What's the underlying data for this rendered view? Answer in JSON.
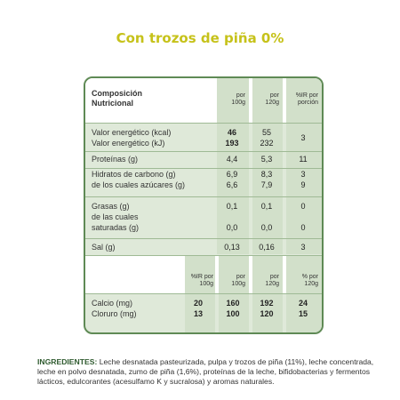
{
  "title": "Con trozos de piña 0%",
  "table": {
    "header": {
      "composicion": "Composición",
      "nutricional": "Nutricional",
      "por100a": "por",
      "por100b": "100g",
      "por120a": "por",
      "por120b": "120g",
      "irA": "%IR por",
      "irB": "porción"
    },
    "rows": [
      {
        "label": "Valor energético (kcal)",
        "v100": "46",
        "v120": "55",
        "ir": "3"
      },
      {
        "label": "Valor energético (kJ)",
        "v100": "193",
        "v120": "232",
        "ir": ""
      },
      {
        "label": "Proteínas (g)",
        "v100": "4,4",
        "v120": "5,3",
        "ir": "11"
      },
      {
        "label": "Hidratos de carbono (g)",
        "v100": "6,9",
        "v120": "8,3",
        "ir": "3"
      },
      {
        "label": "de los cuales azúcares (g)",
        "v100": "6,6",
        "v120": "7,9",
        "ir": "9"
      },
      {
        "label": "Grasas (g)",
        "v100": "0,1",
        "v120": "0,1",
        "ir": "0"
      },
      {
        "label": "de las cuales",
        "v100": "",
        "v120": "",
        "ir": ""
      },
      {
        "label": "saturadas (g)",
        "v100": "0,0",
        "v120": "0,0",
        "ir": "0"
      },
      {
        "label": "Sal (g)",
        "v100": "0,13",
        "v120": "0,16",
        "ir": "3"
      }
    ],
    "minerals_header": {
      "ir100a": "%IR por",
      "ir100b": "100g",
      "por100a": "por",
      "por100b": "100g",
      "por120a": "por",
      "por120b": "120g",
      "pctA": "% por",
      "pctB": "120g"
    },
    "minerals": [
      {
        "label": "Calcio (mg)",
        "ir100": "20",
        "v100": "160",
        "v120": "192",
        "pct": "24"
      },
      {
        "label": "Cloruro (mg)",
        "ir100": "13",
        "v100": "100",
        "v120": "120",
        "pct": "15"
      }
    ]
  },
  "ingredients": {
    "label": "INGREDIENTES:",
    "text": " Leche desnatada pasteurizada, pulpa y trozos de piña (11%), leche concentrada, leche en polvo desnatada, zumo de piña (1,6%), proteínas de la leche, bifidobacterias y fermentos lácticos, edulcorantes (acesulfamo K y sucralosa) y aromas naturales."
  },
  "colors": {
    "title": "#c6c21a",
    "border": "#5f8a55",
    "panel": "#dfe9d9"
  }
}
